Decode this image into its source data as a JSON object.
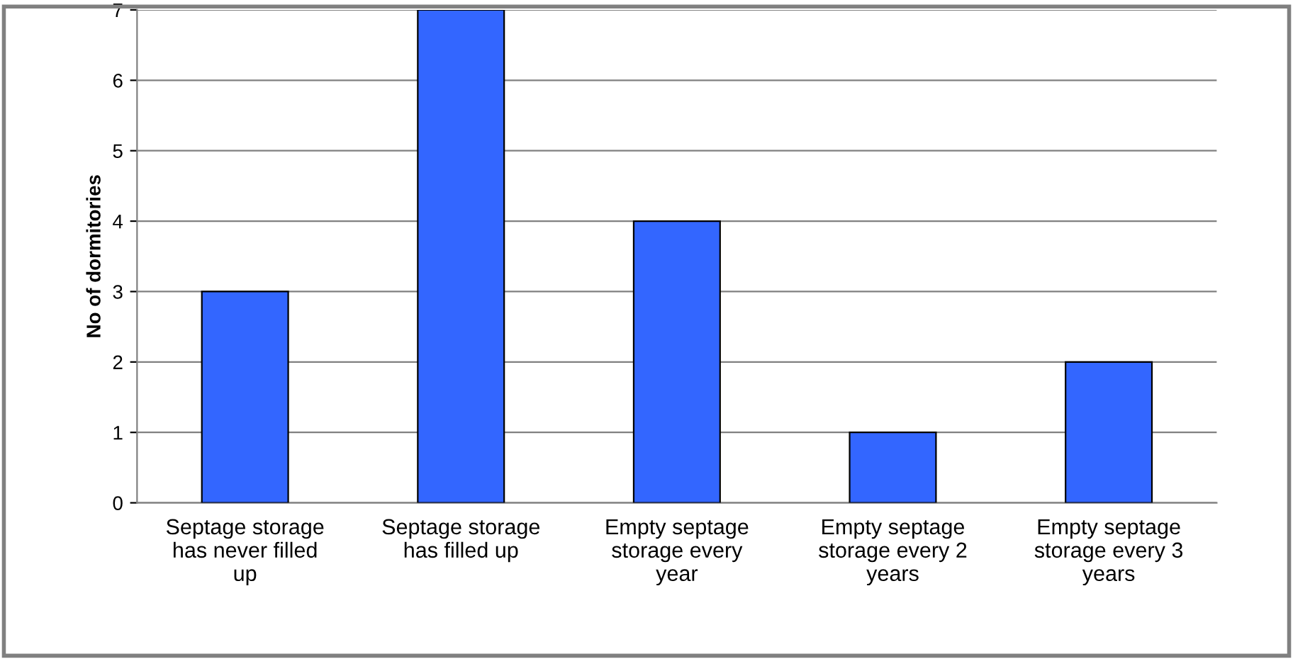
{
  "chart_data": {
    "type": "bar",
    "ylabel": "No of dormitories",
    "categories": [
      "Septage storage has never filled up",
      "Septage storage has filled up",
      "Empty septage storage every year",
      "Empty septage storage every 2 years",
      "Empty septage storage every 3 years"
    ],
    "values": [
      3,
      7,
      4,
      1,
      2
    ],
    "color": "#3366ff",
    "ylim": [
      0,
      7
    ],
    "yticks": [
      0,
      1,
      2,
      3,
      4,
      5,
      6,
      7
    ],
    "grid": "y",
    "legend": false
  }
}
